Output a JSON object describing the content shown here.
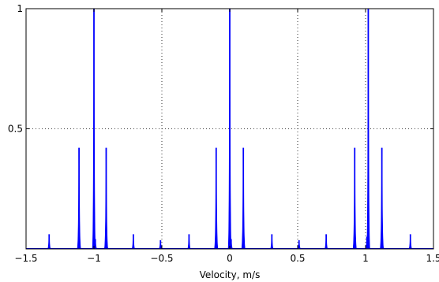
{
  "chart_data": {
    "type": "line",
    "title": "",
    "xlabel": "Velocity, m/s",
    "ylabel": "",
    "xlim": [
      -1.5,
      1.5
    ],
    "ylim": [
      0,
      1
    ],
    "grid": true,
    "x_ticks": [
      -1.5,
      -1,
      -0.5,
      0,
      0.5,
      1,
      1.5
    ],
    "x_tick_labels": [
      "−1.5",
      "−1",
      "−0.5",
      "0",
      "0.5",
      "1",
      "1.5"
    ],
    "y_ticks": [
      0.5,
      1
    ],
    "y_tick_labels": [
      "0.5",
      "1"
    ],
    "series": [
      {
        "color": "#0000ff",
        "peaks": [
          {
            "x": -1.33,
            "y": 0.06
          },
          {
            "x": -1.11,
            "y": 0.42
          },
          {
            "x": -1.0,
            "y": 1.0
          },
          {
            "x": -0.99,
            "y": 0.04
          },
          {
            "x": -0.91,
            "y": 0.42
          },
          {
            "x": -0.71,
            "y": 0.06
          },
          {
            "x": -0.51,
            "y": 0.035
          },
          {
            "x": -0.3,
            "y": 0.06
          },
          {
            "x": -0.1,
            "y": 0.42
          },
          {
            "x": 0.0,
            "y": 1.0
          },
          {
            "x": 0.01,
            "y": 0.04
          },
          {
            "x": 0.1,
            "y": 0.42
          },
          {
            "x": 0.31,
            "y": 0.06
          },
          {
            "x": 0.51,
            "y": 0.035
          },
          {
            "x": 0.71,
            "y": 0.06
          },
          {
            "x": 0.92,
            "y": 0.42
          },
          {
            "x": 1.01,
            "y": 0.05
          },
          {
            "x": 1.02,
            "y": 1.0
          },
          {
            "x": 1.12,
            "y": 0.42
          },
          {
            "x": 1.33,
            "y": 0.06
          }
        ]
      }
    ]
  }
}
